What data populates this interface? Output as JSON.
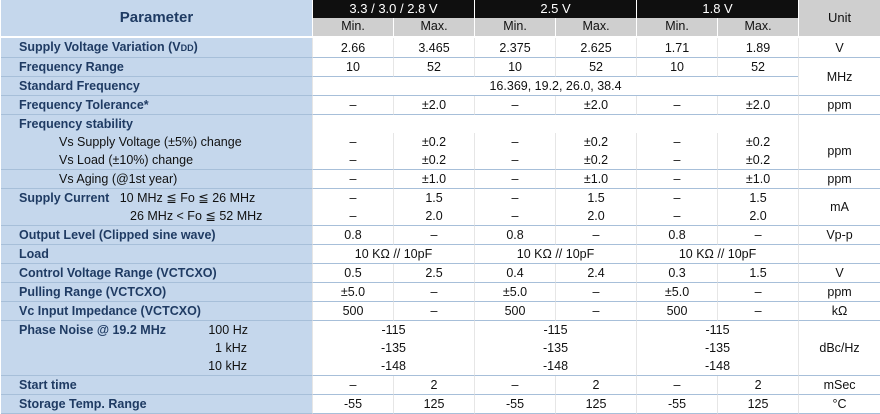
{
  "header": {
    "parameter": "Parameter",
    "unit": "Unit",
    "voltages": [
      "3.3 / 3.0 / 2.8 V",
      "2.5 V",
      "1.8 V"
    ],
    "min": "Min.",
    "max": "Max."
  },
  "rows": {
    "supply_voltage": {
      "label": "Supply Voltage Variation (V",
      "label_sub": "DD",
      "label_end": ")",
      "vals": [
        "2.66",
        "3.465",
        "2.375",
        "2.625",
        "1.71",
        "1.89"
      ],
      "unit": "V"
    },
    "freq_range": {
      "label": "Frequency Range",
      "vals": [
        "10",
        "52",
        "10",
        "52",
        "10",
        "52"
      ],
      "unit": "MHz"
    },
    "std_freq": {
      "label": "Standard Frequency",
      "value": "16.369, 19.2, 26.0, 38.4"
    },
    "freq_tol": {
      "label": "Frequency Tolerance*",
      "vals": [
        "–",
        "±2.0",
        "–",
        "±2.0",
        "–",
        "±2.0"
      ],
      "unit": "ppm"
    },
    "freq_stab": {
      "label": "Frequency stability"
    },
    "vs_supply": {
      "label": "Vs Supply Voltage (±5%) change",
      "vals": [
        "–",
        "±0.2",
        "–",
        "±0.2",
        "–",
        "±0.2"
      ]
    },
    "vs_load": {
      "label": "Vs Load (±10%) change",
      "vals": [
        "–",
        "±0.2",
        "–",
        "±0.2",
        "–",
        "±0.2"
      ],
      "unit": "ppm"
    },
    "vs_aging": {
      "label": "Vs Aging (@1st year)",
      "vals": [
        "–",
        "±1.0",
        "–",
        "±1.0",
        "–",
        "±1.0"
      ],
      "unit": "ppm"
    },
    "supply_current": {
      "label": "Supply Current",
      "cond1": "10 MHz ≦ Fo ≦ 26 MHz",
      "cond2": "26 MHz < Fo ≦ 52 MHz",
      "vals1": [
        "–",
        "1.5",
        "–",
        "1.5",
        "–",
        "1.5"
      ],
      "vals2": [
        "–",
        "2.0",
        "–",
        "2.0",
        "–",
        "2.0"
      ],
      "unit": "mA"
    },
    "output_level": {
      "label": "Output Level (Clipped sine wave)",
      "vals": [
        "0.8",
        "–",
        "0.8",
        "–",
        "0.8",
        "–"
      ],
      "unit": "Vp-p"
    },
    "load": {
      "label": "Load",
      "vals": [
        "10 KΩ // 10pF",
        "10 KΩ // 10pF",
        "10 KΩ // 10pF"
      ]
    },
    "ctrl_voltage": {
      "label": "Control Voltage Range (VCTCXO)",
      "vals": [
        "0.5",
        "2.5",
        "0.4",
        "2.4",
        "0.3",
        "1.5"
      ],
      "unit": "V"
    },
    "pulling": {
      "label": "Pulling Range (VCTCXO)",
      "vals": [
        "±5.0",
        "–",
        "±5.0",
        "–",
        "±5.0",
        "–"
      ],
      "unit": "ppm"
    },
    "vc_impedance": {
      "label": "Vc Input Impedance (VCTCXO)",
      "vals": [
        "500",
        "–",
        "500",
        "–",
        "500",
        "–"
      ],
      "unit": "kΩ"
    },
    "phase_noise": {
      "label": "Phase Noise @ 19.2 MHz",
      "offsets": [
        "100 Hz",
        "1 kHz",
        "10 kHz"
      ],
      "vals": [
        [
          "-115",
          "-115",
          "-115"
        ],
        [
          "-135",
          "-135",
          "-135"
        ],
        [
          "-148",
          "-148",
          "-148"
        ]
      ],
      "unit": "dBc/Hz"
    },
    "start_time": {
      "label": "Start time",
      "vals": [
        "–",
        "2",
        "–",
        "2",
        "–",
        "2"
      ],
      "unit": "mSec"
    },
    "storage": {
      "label": "Storage Temp. Range",
      "vals": [
        "-55",
        "125",
        "-55",
        "125",
        "-55",
        "125"
      ],
      "unit": "°C"
    }
  }
}
